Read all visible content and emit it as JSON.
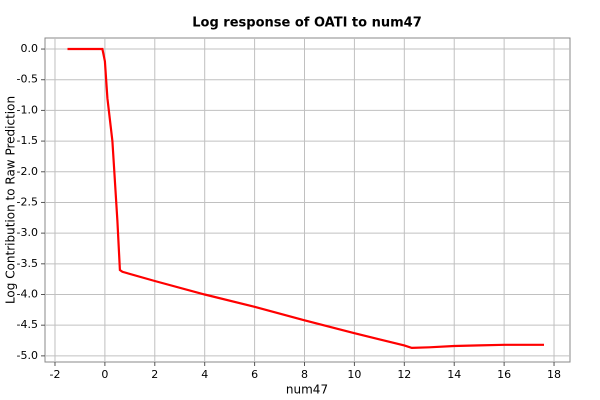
{
  "chart_data": {
    "type": "line",
    "title": "Log response of OATI to num47",
    "x_label": "num47",
    "y_label": "Log Contribution to Raw Prediction",
    "x": [
      -1.5,
      -0.1,
      0.0,
      0.1,
      0.3,
      0.5,
      0.6,
      0.7,
      2,
      4,
      6,
      8,
      10,
      12,
      12.3,
      13,
      14,
      15,
      16,
      17.6
    ],
    "series": [
      {
        "color": "#ff0000",
        "values": [
          0,
          0,
          -0.2,
          -0.8,
          -1.5,
          -2.8,
          -3.6,
          -3.63,
          -3.78,
          -4.0,
          -4.2,
          -4.42,
          -4.63,
          -4.83,
          -4.87,
          -4.86,
          -4.84,
          -4.83,
          -4.82,
          -4.82
        ]
      }
    ],
    "xlim": [
      -2.4,
      18.64
    ],
    "xticks": [
      -2,
      0,
      2,
      4,
      6,
      8,
      10,
      12,
      14,
      16,
      18
    ],
    "ylim": [
      -5.1,
      0.18
    ],
    "yticks": [
      {
        "value": 0,
        "label": "0.0"
      },
      -0.5,
      {
        "value": -1,
        "label": "-1.0"
      },
      -1.5,
      {
        "value": -2,
        "label": "-2.0"
      },
      -2.5,
      {
        "value": -3,
        "label": "-3.0"
      },
      -3.5,
      {
        "value": -4,
        "label": "-4.0"
      },
      -4.5,
      {
        "value": -5,
        "label": "-5.0"
      }
    ],
    "grid": true
  }
}
